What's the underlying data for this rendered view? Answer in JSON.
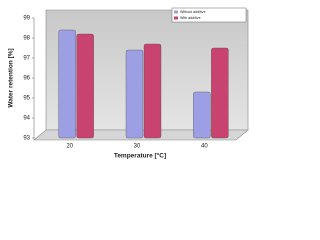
{
  "chart_data": {
    "type": "bar",
    "categories": [
      "20",
      "30",
      "40"
    ],
    "series": [
      {
        "name": "Without additive",
        "color": "#9c9fe3",
        "values": [
          98.4,
          97.4,
          95.3
        ]
      },
      {
        "name": "With additive",
        "color": "#c8436f",
        "values": [
          98.2,
          97.7,
          97.5
        ]
      }
    ],
    "ylim": [
      93,
      99
    ],
    "yticks": [
      93,
      94,
      95,
      96,
      97,
      98,
      99
    ],
    "y_label": "Water retention [%]",
    "x_label": "Temperature [°C]",
    "grid": false,
    "legend": "top-right"
  }
}
